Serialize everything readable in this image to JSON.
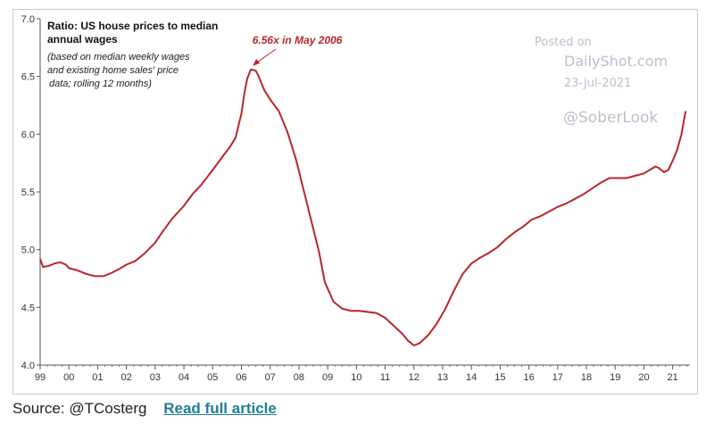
{
  "chart_data": {
    "type": "line",
    "title": "Ratio: US house prices to median annual wages",
    "subtitle": "(based on median weekly wages and existing home sales' price data; rolling 12 months)",
    "annotation": {
      "text": "6.56x in May 2006",
      "x": 2006.33,
      "y": 6.56
    },
    "ylim": [
      4.0,
      7.0
    ],
    "yticks": [
      "4.0",
      "4.5",
      "5.0",
      "5.5",
      "6.0",
      "6.5",
      "7.0"
    ],
    "xlim": [
      1999.0,
      2021.6
    ],
    "xticks": [
      "99",
      "00",
      "01",
      "02",
      "03",
      "04",
      "05",
      "06",
      "07",
      "08",
      "09",
      "10",
      "11",
      "12",
      "13",
      "14",
      "15",
      "16",
      "17",
      "18",
      "19",
      "20",
      "21"
    ],
    "grid": false,
    "line_color": "#b8262b",
    "series": [
      {
        "values": [
          [
            1999.0,
            4.92
          ],
          [
            1999.1,
            4.85
          ],
          [
            1999.3,
            4.86
          ],
          [
            1999.5,
            4.88
          ],
          [
            1999.7,
            4.89
          ],
          [
            1999.9,
            4.87
          ],
          [
            2000.0,
            4.84
          ],
          [
            2000.3,
            4.82
          ],
          [
            2000.6,
            4.79
          ],
          [
            2000.9,
            4.77
          ],
          [
            2001.2,
            4.77
          ],
          [
            2001.5,
            4.8
          ],
          [
            2001.8,
            4.84
          ],
          [
            2002.0,
            4.87
          ],
          [
            2002.3,
            4.9
          ],
          [
            2002.6,
            4.96
          ],
          [
            2003.0,
            5.06
          ],
          [
            2003.3,
            5.17
          ],
          [
            2003.6,
            5.27
          ],
          [
            2004.0,
            5.38
          ],
          [
            2004.3,
            5.48
          ],
          [
            2004.6,
            5.56
          ],
          [
            2005.0,
            5.69
          ],
          [
            2005.3,
            5.79
          ],
          [
            2005.6,
            5.89
          ],
          [
            2005.8,
            5.97
          ],
          [
            2006.0,
            6.18
          ],
          [
            2006.1,
            6.35
          ],
          [
            2006.2,
            6.48
          ],
          [
            2006.33,
            6.56
          ],
          [
            2006.5,
            6.55
          ],
          [
            2006.6,
            6.5
          ],
          [
            2006.8,
            6.38
          ],
          [
            2007.0,
            6.3
          ],
          [
            2007.3,
            6.2
          ],
          [
            2007.6,
            6.02
          ],
          [
            2007.9,
            5.78
          ],
          [
            2008.2,
            5.48
          ],
          [
            2008.5,
            5.18
          ],
          [
            2008.7,
            4.98
          ],
          [
            2008.9,
            4.72
          ],
          [
            2009.2,
            4.55
          ],
          [
            2009.5,
            4.49
          ],
          [
            2009.8,
            4.47
          ],
          [
            2010.1,
            4.47
          ],
          [
            2010.4,
            4.46
          ],
          [
            2010.7,
            4.45
          ],
          [
            2011.0,
            4.41
          ],
          [
            2011.3,
            4.34
          ],
          [
            2011.6,
            4.27
          ],
          [
            2011.8,
            4.21
          ],
          [
            2012.0,
            4.17
          ],
          [
            2012.2,
            4.19
          ],
          [
            2012.5,
            4.26
          ],
          [
            2012.8,
            4.36
          ],
          [
            2013.1,
            4.49
          ],
          [
            2013.4,
            4.65
          ],
          [
            2013.7,
            4.79
          ],
          [
            2014.0,
            4.88
          ],
          [
            2014.3,
            4.93
          ],
          [
            2014.6,
            4.97
          ],
          [
            2014.9,
            5.02
          ],
          [
            2015.2,
            5.09
          ],
          [
            2015.5,
            5.15
          ],
          [
            2015.8,
            5.2
          ],
          [
            2016.1,
            5.26
          ],
          [
            2016.4,
            5.29
          ],
          [
            2016.7,
            5.33
          ],
          [
            2017.0,
            5.37
          ],
          [
            2017.3,
            5.4
          ],
          [
            2017.6,
            5.44
          ],
          [
            2017.9,
            5.48
          ],
          [
            2018.2,
            5.53
          ],
          [
            2018.5,
            5.58
          ],
          [
            2018.8,
            5.62
          ],
          [
            2019.1,
            5.62
          ],
          [
            2019.4,
            5.62
          ],
          [
            2019.7,
            5.64
          ],
          [
            2020.0,
            5.66
          ],
          [
            2020.2,
            5.69
          ],
          [
            2020.4,
            5.72
          ],
          [
            2020.5,
            5.71
          ],
          [
            2020.6,
            5.69
          ],
          [
            2020.7,
            5.67
          ],
          [
            2020.85,
            5.69
          ],
          [
            2021.0,
            5.77
          ],
          [
            2021.15,
            5.86
          ],
          [
            2021.3,
            5.99
          ],
          [
            2021.45,
            6.2
          ]
        ]
      }
    ]
  },
  "watermark": {
    "posted_on": "Posted on",
    "site": "DailyShot.com",
    "date": "23-Jul-2021",
    "handle": "@SoberLook"
  },
  "footer": {
    "source_label": "Source:",
    "source_value": "@TCosterg",
    "link_text": "Read full article"
  }
}
